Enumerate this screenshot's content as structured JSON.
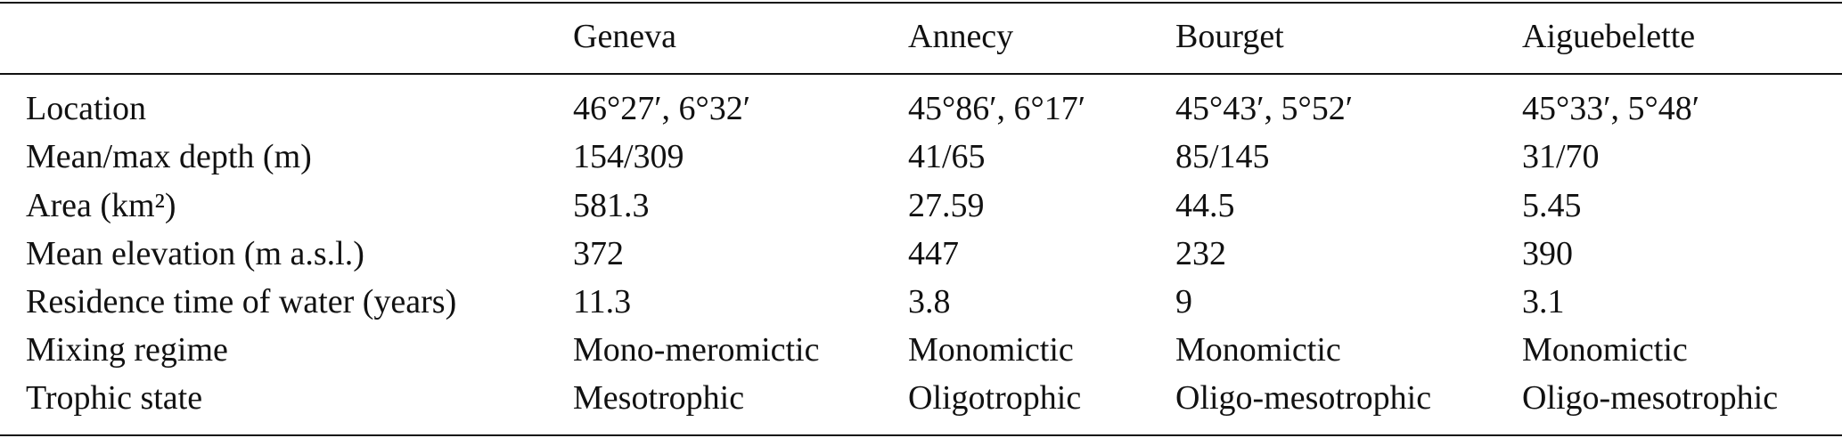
{
  "table": {
    "header": [
      "Geneva",
      "Annecy",
      "Bourget",
      "Aiguebelette"
    ],
    "rows": [
      [
        "Location",
        "46°27′, 6°32′",
        "45°86′, 6°17′",
        "45°43′, 5°52′",
        "45°33′, 5°48′"
      ],
      [
        "Mean/max depth (m)",
        "154/309",
        "41/65",
        "85/145",
        "31/70"
      ],
      [
        "Area (km²)",
        "581.3",
        "27.59",
        "44.5",
        "5.45"
      ],
      [
        "Mean elevation (m a.s.l.)",
        "372",
        "447",
        "232",
        "390"
      ],
      [
        "Residence time of water (years)",
        "11.3",
        "3.8",
        "9",
        "3.1"
      ],
      [
        "Mixing regime",
        "Mono-meromictic",
        "Monomictic",
        "Monomictic",
        "Monomictic"
      ],
      [
        "Trophic state",
        "Mesotrophic",
        "Oligotrophic",
        "Oligo-mesotrophic",
        "Oligo-mesotrophic"
      ]
    ]
  }
}
